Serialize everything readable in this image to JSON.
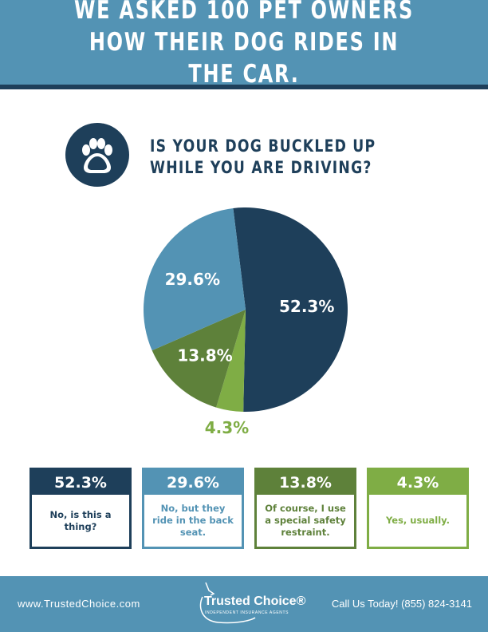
{
  "header": {
    "title": "WE ASKED 100 PET OWNERS HOW THEIR DOG RIDES IN THE CAR."
  },
  "question": {
    "line1": "IS YOUR DOG BUCKLED UP",
    "line2": "WHILE YOU ARE DRIVING?",
    "icon": "paw-icon"
  },
  "colors": {
    "navy": "#1e3f5a",
    "blue": "#5393b4",
    "dark_green": "#5e813a",
    "light_green": "#7fad45"
  },
  "chart_data": {
    "type": "pie",
    "title": "IS YOUR DOG BUCKLED UP WHILE YOU ARE DRIVING?",
    "slices": [
      {
        "label": "No, is this a thing?",
        "value": 52.3,
        "display": "52.3%",
        "color": "#1e3f5a"
      },
      {
        "label": "Yes, usually.",
        "value": 4.3,
        "display": "4.3%",
        "color": "#7fad45"
      },
      {
        "label": "Of course, I use a special safety restraint.",
        "value": 13.8,
        "display": "13.8%",
        "color": "#5e813a"
      },
      {
        "label": "No, but they ride in the back seat.",
        "value": 29.6,
        "display": "29.6%",
        "color": "#5393b4"
      }
    ]
  },
  "cards": [
    {
      "pct": "52.3%",
      "label": "No, is this a thing?",
      "color": "#1e3f5a"
    },
    {
      "pct": "29.6%",
      "label": "No, but they ride in the back seat.",
      "color": "#5393b4"
    },
    {
      "pct": "13.8%",
      "label": "Of course, I use a special safety restraint.",
      "color": "#5e813a"
    },
    {
      "pct": "4.3%",
      "label": "Yes, usually.",
      "color": "#7fad45"
    }
  ],
  "footer": {
    "url": "www.TrustedChoice.com",
    "logo_name": "Trusted Choice®",
    "logo_sub": "INDEPENDENT INSURANCE AGENTS",
    "call": "Call Us Today! (855) 824-3141"
  }
}
